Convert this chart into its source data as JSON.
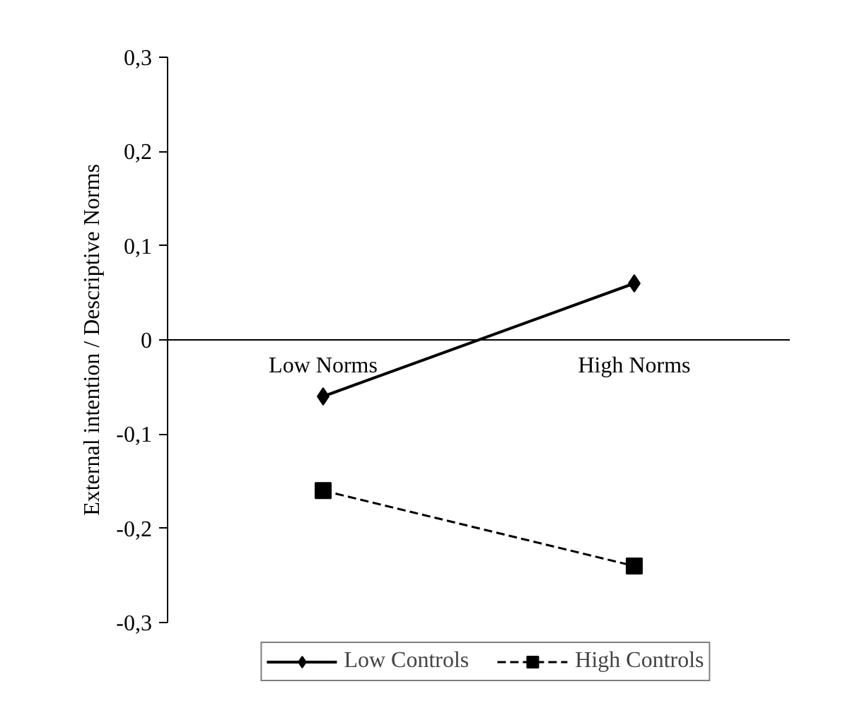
{
  "chart_data": {
    "type": "line",
    "ylabel": "External intention / Descriptive Norms",
    "categories": [
      "Low Norms",
      "High Norms"
    ],
    "series": [
      {
        "name": "Low Controls",
        "color": "#000000",
        "values": [
          -0.06,
          0.06
        ],
        "marker": "diamond",
        "line_style": "solid"
      },
      {
        "name": "High Controls",
        "color": "#000000",
        "values": [
          -0.16,
          -0.24
        ],
        "marker": "square",
        "line_style": "dashed"
      }
    ],
    "ylim": [
      -0.3,
      0.3
    ],
    "yticks": [
      {
        "value": -0.3,
        "label": "-0,3"
      },
      {
        "value": -0.2,
        "label": "-0,2"
      },
      {
        "value": -0.1,
        "label": "-0,1"
      },
      0,
      {
        "value": 0.1,
        "label": "0,1"
      },
      {
        "value": 0.2,
        "label": "0,2"
      },
      {
        "value": 0.3,
        "label": "0,3"
      }
    ],
    "grid": false,
    "legend": "bottom"
  }
}
